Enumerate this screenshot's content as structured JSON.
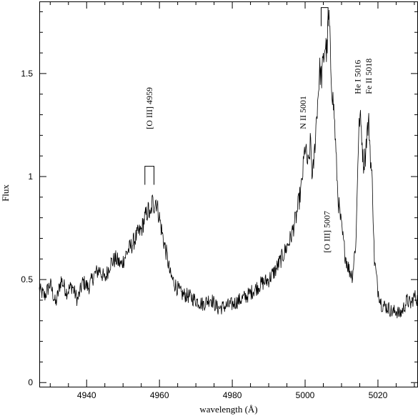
{
  "chart_data": {
    "type": "line",
    "title": "",
    "xlabel": "wavelength (Å)",
    "ylabel": "Flux",
    "xlim": [
      4927,
      5031
    ],
    "ylim": [
      -0.02,
      1.85
    ],
    "x_ticks": [
      4940,
      4960,
      4980,
      5000,
      5020
    ],
    "y_ticks": [
      0,
      0.5,
      1,
      1.5
    ],
    "x_tick_labels": [
      "4940",
      "4960",
      "4980",
      "5000",
      "5020"
    ],
    "y_tick_labels": [
      "0",
      "0.5",
      "1",
      "1.5"
    ],
    "grid": false,
    "series": [
      {
        "x": [
          4927.0,
          4928.5,
          4930.0,
          4931.5,
          4933.0,
          4934.5,
          4936.0,
          4937.5,
          4939.0,
          4940.5,
          4942.0,
          4943.5,
          4945.0,
          4946.5,
          4948.0,
          4949.5,
          4951.0,
          4952.5,
          4954.0,
          4955.0,
          4956.0,
          4957.0,
          4957.5,
          4958.0,
          4958.5,
          4959.0,
          4960.0,
          4961.0,
          4962.0,
          4963.0,
          4964.5,
          4966.0,
          4968.0,
          4970.0,
          4972.0,
          4974.0,
          4976.0,
          4978.0,
          4980.0,
          4982.0,
          4984.0,
          4986.0,
          4988.0,
          4990.0,
          4992.0,
          4994.0,
          4996.0,
          4997.5,
          4999.0,
          5000.0,
          5000.5,
          5001.0,
          5001.5,
          5002.0,
          5002.5,
          5003.0,
          5003.5,
          5004.0,
          5004.5,
          5005.0,
          5005.5,
          5006.0,
          5006.3,
          5006.6,
          5007.0,
          5007.5,
          5008.0,
          5008.5,
          5009.0,
          5010.0,
          5011.0,
          5012.0,
          5013.0,
          5014.0,
          5014.5,
          5015.0,
          5015.5,
          5016.0,
          5016.5,
          5017.0,
          5017.5,
          5018.0,
          5018.5,
          5019.0,
          5020.0,
          5021.0,
          5022.0,
          5023.0,
          5024.0,
          5025.0,
          5026.0,
          5027.0,
          5028.0,
          5029.0,
          5030.0,
          5031.0
        ],
        "y": [
          0.45,
          0.42,
          0.48,
          0.38,
          0.5,
          0.44,
          0.47,
          0.4,
          0.49,
          0.46,
          0.52,
          0.55,
          0.5,
          0.58,
          0.6,
          0.57,
          0.63,
          0.67,
          0.72,
          0.74,
          0.8,
          0.84,
          0.79,
          0.88,
          0.86,
          0.89,
          0.8,
          0.7,
          0.62,
          0.52,
          0.47,
          0.43,
          0.42,
          0.4,
          0.38,
          0.41,
          0.36,
          0.37,
          0.38,
          0.4,
          0.42,
          0.45,
          0.48,
          0.5,
          0.55,
          0.62,
          0.7,
          0.8,
          0.95,
          1.15,
          1.08,
          1.05,
          1.18,
          0.98,
          1.1,
          1.25,
          1.38,
          1.52,
          1.48,
          1.56,
          1.64,
          1.6,
          1.74,
          1.77,
          1.55,
          1.4,
          1.3,
          1.1,
          0.9,
          0.75,
          0.62,
          0.55,
          0.52,
          0.7,
          1.1,
          1.3,
          1.22,
          1.06,
          1.1,
          1.22,
          1.26,
          1.08,
          0.95,
          0.6,
          0.45,
          0.38,
          0.37,
          0.36,
          0.34,
          0.35,
          0.33,
          0.36,
          0.4,
          0.38,
          0.42,
          0.4
        ]
      }
    ],
    "annotations": [
      {
        "text": "[O III] 4959",
        "x": 4958.0,
        "y": 1.23,
        "rotate": -90
      },
      {
        "text": "N II 5001",
        "x": 5000.2,
        "y": 1.23,
        "rotate": -90
      },
      {
        "text": "[O III] 5007",
        "x": 5006.8,
        "y": 0.63,
        "rotate": -90
      },
      {
        "text": "He I 5016",
        "x": 5015.2,
        "y": 1.4,
        "rotate": -90
      },
      {
        "text": "Fe II 5018",
        "x": 5018.2,
        "y": 1.4,
        "rotate": -90
      }
    ],
    "brackets": [
      {
        "x1": 4956.0,
        "x2": 4958.5,
        "top": 1.05,
        "bottom": 0.96
      },
      {
        "x1": 5004.4,
        "x2": 5006.3,
        "top": 1.82,
        "bottom": 1.73
      }
    ]
  }
}
